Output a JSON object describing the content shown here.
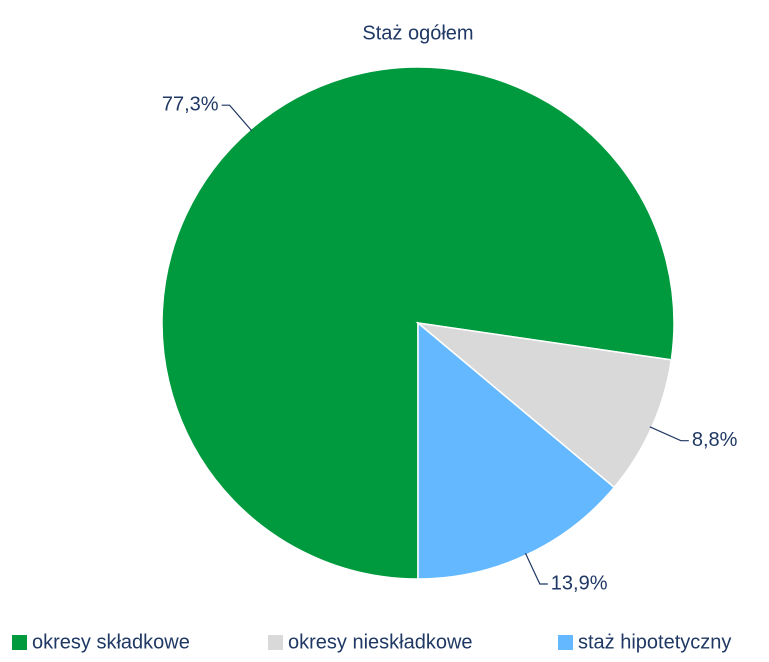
{
  "chart_data": {
    "type": "pie",
    "title": "Staż ogółem",
    "categories": [
      "okresy składkowe",
      "okresy nieskładkowe",
      "staż hipotetyczny"
    ],
    "values": [
      77.3,
      8.8,
      13.9
    ],
    "value_labels": [
      "77,3%",
      "8,8%",
      "13,9%"
    ],
    "colors": [
      "#009a3e",
      "#d9d9d9",
      "#63b8ff"
    ],
    "legend": "bottom"
  }
}
